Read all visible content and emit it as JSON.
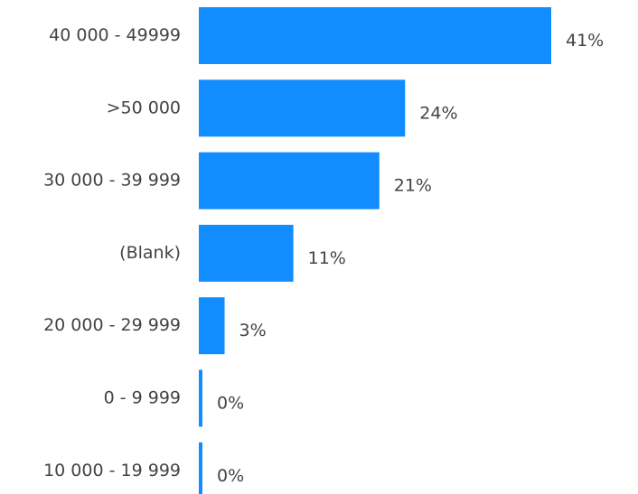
{
  "chart_data": {
    "type": "bar",
    "orientation": "horizontal",
    "categories": [
      "40 000 - 49999",
      ">50 000",
      "30 000 - 39 999",
      "(Blank)",
      "20 000 - 29 999",
      "0 - 9 999",
      "10 000 - 19 999"
    ],
    "values": [
      41,
      24,
      21,
      11,
      3,
      0,
      0
    ],
    "data_labels": [
      "41%",
      "24%",
      "21%",
      "11%",
      "3%",
      "0%",
      "0%"
    ],
    "value_unit": "%",
    "xlim": [
      0,
      41
    ],
    "grid": false,
    "legend": "none",
    "bar_color": "#118DFF"
  }
}
